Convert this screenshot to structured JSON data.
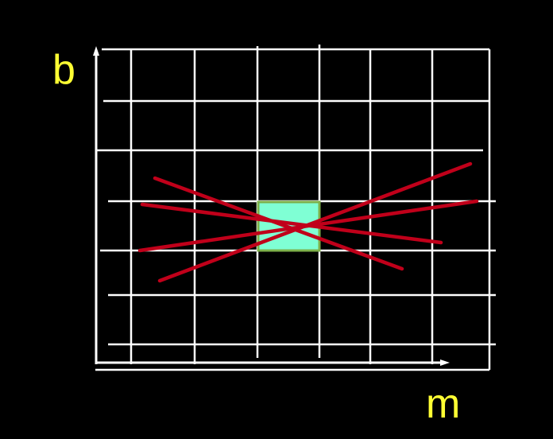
{
  "labels": {
    "y_axis": "b",
    "x_axis": "m"
  },
  "colors": {
    "background": "#000000",
    "grid": "#ffffff",
    "lines": "#c0001a",
    "highlight_fill": "#7fffd4",
    "highlight_border": "#7db04a",
    "label": "#ffff33"
  },
  "diagram": {
    "description_elements": [
      "grid",
      "axes",
      "highlight-cell",
      "red-lines"
    ],
    "red_line_count": 4,
    "highlight_cell": {
      "column": 3,
      "row": 4
    }
  }
}
